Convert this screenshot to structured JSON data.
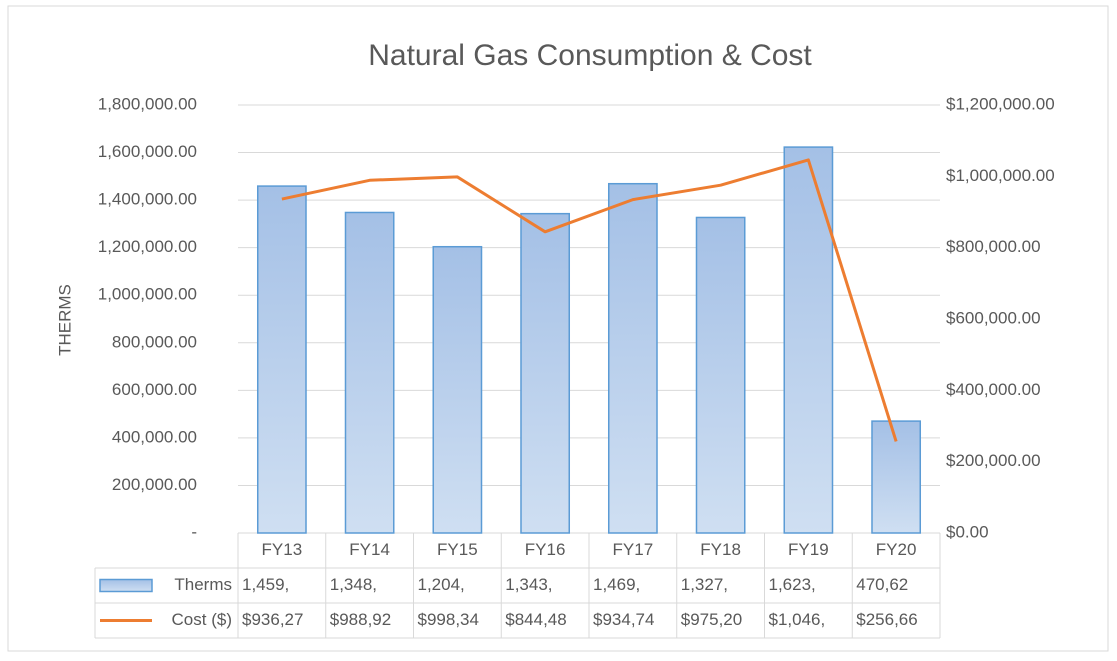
{
  "chart_data": {
    "type": "bar-line",
    "title": "Natural Gas Consumption & Cost",
    "y_label": "THERMS",
    "categories": [
      "FY13",
      "FY14",
      "FY15",
      "FY16",
      "FY17",
      "FY18",
      "FY19",
      "FY20"
    ],
    "series": [
      {
        "name": "Therms",
        "type": "bar",
        "color": "#5b9bd5",
        "values": [
          1459000,
          1348000,
          1204000,
          1343000,
          1469000,
          1327000,
          1623000,
          470620
        ],
        "value_labels": [
          "1,459,",
          "1,348,",
          "1,204,",
          "1,343,",
          "1,469,",
          "1,327,",
          "1,623,",
          "470,62"
        ]
      },
      {
        "name": "Cost ($)",
        "type": "line",
        "axis": "y2",
        "color": "#ed7d31",
        "values": [
          936270,
          988920,
          998340,
          844480,
          934740,
          975200,
          1046000,
          256660
        ],
        "value_labels": [
          "$936,27",
          "$988,92",
          "$998,34",
          "$844,48",
          "$934,74",
          "$975,20",
          "$1,046,",
          "$256,66"
        ]
      }
    ],
    "ylim": [
      0,
      1800000
    ],
    "yticks": [
      {
        "value": 0,
        "label": "-"
      },
      {
        "value": 200000,
        "label": "200,000.00"
      },
      {
        "value": 400000,
        "label": "400,000.00"
      },
      {
        "value": 600000,
        "label": "600,000.00"
      },
      {
        "value": 800000,
        "label": "800,000.00"
      },
      {
        "value": 1000000,
        "label": "1,000,000.00"
      },
      {
        "value": 1200000,
        "label": "1,200,000.00"
      },
      {
        "value": 1400000,
        "label": "1,400,000.00"
      },
      {
        "value": 1600000,
        "label": "1,600,000.00"
      },
      {
        "value": 1800000,
        "label": "1,800,000.00"
      }
    ],
    "y2lim": [
      0,
      1200000
    ],
    "y2ticks": [
      {
        "value": 0,
        "label": "$0.00"
      },
      {
        "value": 200000,
        "label": "$200,000.00"
      },
      {
        "value": 400000,
        "label": "$400,000.00"
      },
      {
        "value": 600000,
        "label": "$600,000.00"
      },
      {
        "value": 800000,
        "label": "$800,000.00"
      },
      {
        "value": 1000000,
        "label": "$1,000,000.00"
      },
      {
        "value": 1200000,
        "label": "$1,200,000.00"
      }
    ],
    "grid": true
  }
}
